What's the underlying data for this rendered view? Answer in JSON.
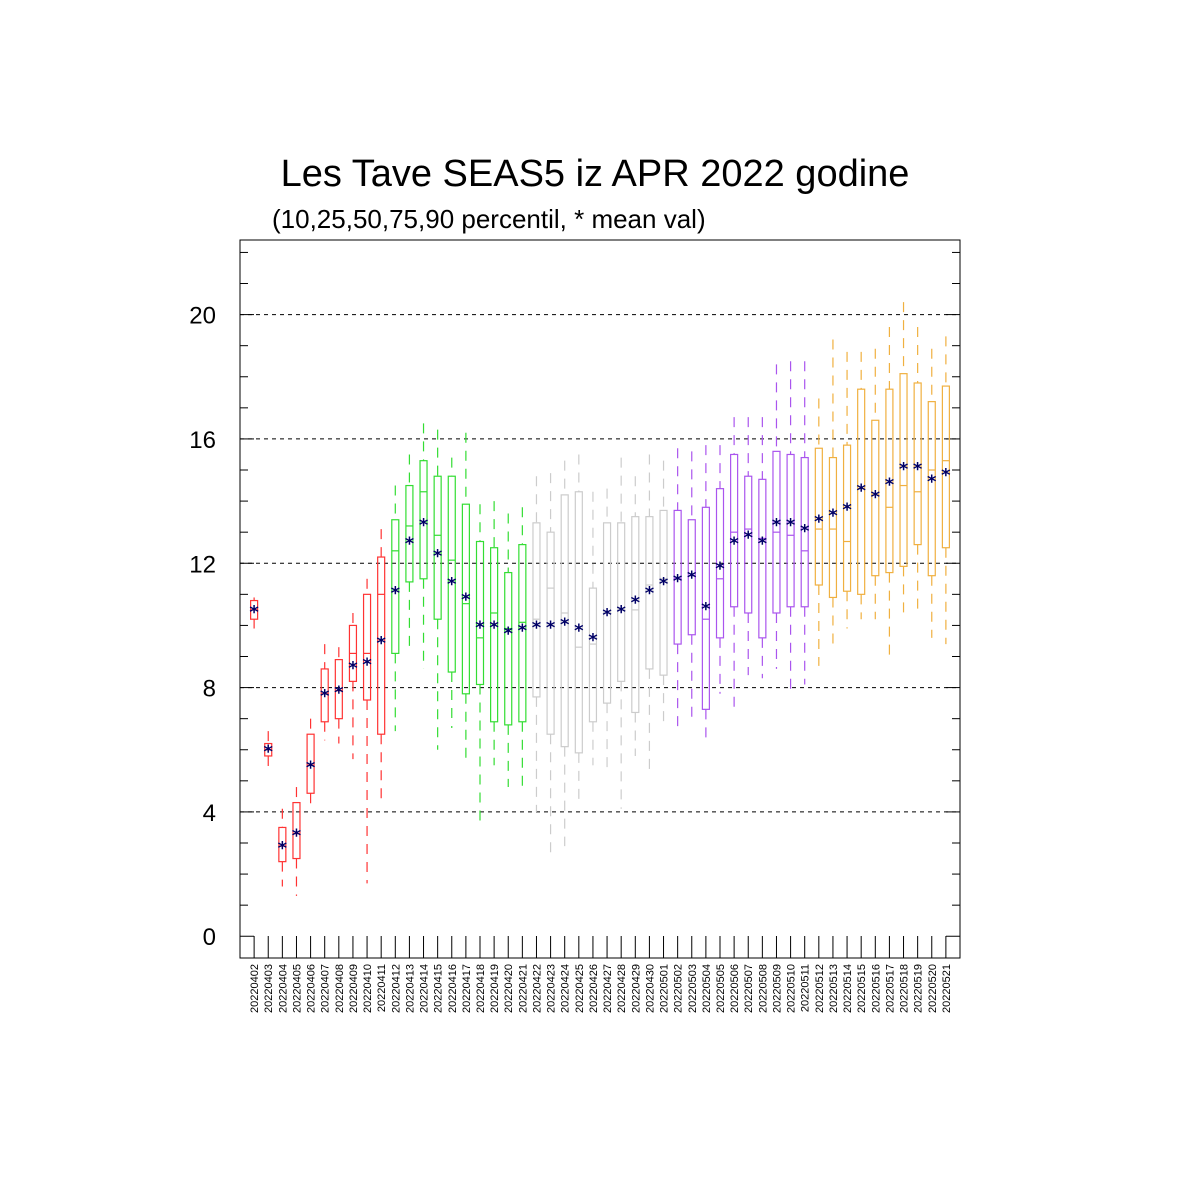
{
  "chart_data": {
    "type": "boxplot",
    "title": "Les Tave SEAS5 iz APR 2022 godine",
    "subtitle": "(10,25,50,75,90 percentil, * mean val)",
    "xlabel": "",
    "ylabel": "",
    "ylim": [
      -0.7,
      22.4
    ],
    "yticks": [
      0,
      4,
      8,
      12,
      16,
      20
    ],
    "grid_y": [
      4,
      8,
      12,
      16,
      20
    ],
    "mean_color": "#000066",
    "boxes": [
      {
        "date": "20220402",
        "p10": 9.9,
        "p25": 10.2,
        "p50": 10.5,
        "p75": 10.8,
        "p90": 10.9,
        "mean": 10.5,
        "color": "#ff3333"
      },
      {
        "date": "20220403",
        "p10": 5.3,
        "p25": 5.8,
        "p50": 6.0,
        "p75": 6.2,
        "p90": 6.6,
        "mean": 6.0,
        "color": "#ff3333"
      },
      {
        "date": "20220404",
        "p10": 1.6,
        "p25": 2.4,
        "p50": 2.9,
        "p75": 3.5,
        "p90": 4.1,
        "mean": 2.9,
        "color": "#ff3333"
      },
      {
        "date": "20220405",
        "p10": 1.3,
        "p25": 2.5,
        "p50": 3.3,
        "p75": 4.3,
        "p90": 4.8,
        "mean": 3.3,
        "color": "#ff3333"
      },
      {
        "date": "20220406",
        "p10": 4.1,
        "p25": 4.6,
        "p50": 5.5,
        "p75": 6.5,
        "p90": 7.0,
        "mean": 5.5,
        "color": "#ff3333"
      },
      {
        "date": "20220407",
        "p10": 6.3,
        "p25": 6.9,
        "p50": 7.8,
        "p75": 8.6,
        "p90": 9.4,
        "mean": 7.8,
        "color": "#ff3333"
      },
      {
        "date": "20220408",
        "p10": 6.2,
        "p25": 7.0,
        "p50": 7.9,
        "p75": 8.9,
        "p90": 9.3,
        "mean": 7.9,
        "color": "#ff3333"
      },
      {
        "date": "20220409",
        "p10": 5.7,
        "p25": 8.2,
        "p50": 9.1,
        "p75": 10.0,
        "p90": 10.4,
        "mean": 8.7,
        "color": "#ff3333"
      },
      {
        "date": "20220410",
        "p10": 1.7,
        "p25": 7.6,
        "p50": 9.1,
        "p75": 11.0,
        "p90": 11.5,
        "mean": 8.8,
        "color": "#ff3333"
      },
      {
        "date": "20220411",
        "p10": 4.3,
        "p25": 6.5,
        "p50": 11.0,
        "p75": 12.2,
        "p90": 13.1,
        "mean": 9.5,
        "color": "#ff3333"
      },
      {
        "date": "20220412",
        "p10": 6.6,
        "p25": 9.1,
        "p50": 12.4,
        "p75": 13.4,
        "p90": 14.5,
        "mean": 11.1,
        "color": "#33dd33"
      },
      {
        "date": "20220413",
        "p10": 9.1,
        "p25": 11.4,
        "p50": 13.2,
        "p75": 14.5,
        "p90": 15.5,
        "mean": 12.7,
        "color": "#33dd33"
      },
      {
        "date": "20220414",
        "p10": 8.6,
        "p25": 11.5,
        "p50": 14.3,
        "p75": 15.3,
        "p90": 16.5,
        "mean": 13.3,
        "color": "#33dd33"
      },
      {
        "date": "20220415",
        "p10": 6.0,
        "p25": 10.2,
        "p50": 12.9,
        "p75": 14.8,
        "p90": 16.3,
        "mean": 12.3,
        "color": "#33dd33"
      },
      {
        "date": "20220416",
        "p10": 6.7,
        "p25": 8.5,
        "p50": 12.1,
        "p75": 14.8,
        "p90": 15.4,
        "mean": 11.4,
        "color": "#33dd33"
      },
      {
        "date": "20220417",
        "p10": 5.5,
        "p25": 7.8,
        "p50": 10.7,
        "p75": 13.9,
        "p90": 16.2,
        "mean": 10.9,
        "color": "#33dd33"
      },
      {
        "date": "20220418",
        "p10": 3.7,
        "p25": 8.1,
        "p50": 9.6,
        "p75": 12.7,
        "p90": 13.9,
        "mean": 10.0,
        "color": "#33dd33"
      },
      {
        "date": "20220419",
        "p10": 5.5,
        "p25": 6.9,
        "p50": 10.4,
        "p75": 12.5,
        "p90": 14.0,
        "mean": 10.0,
        "color": "#33dd33"
      },
      {
        "date": "20220420",
        "p10": 4.8,
        "p25": 6.8,
        "p50": 9.9,
        "p75": 11.7,
        "p90": 13.6,
        "mean": 9.8,
        "color": "#33dd33"
      },
      {
        "date": "20220421",
        "p10": 4.7,
        "p25": 6.9,
        "p50": 10.1,
        "p75": 12.6,
        "p90": 13.8,
        "mean": 9.9,
        "color": "#33dd33"
      },
      {
        "date": "20220422",
        "p10": 4.0,
        "p25": 7.7,
        "p50": 10.2,
        "p75": 13.3,
        "p90": 14.8,
        "mean": 10.0,
        "color": "#cccccc"
      },
      {
        "date": "20220423",
        "p10": 2.7,
        "p25": 6.5,
        "p50": 11.2,
        "p75": 13.0,
        "p90": 14.9,
        "mean": 10.0,
        "color": "#cccccc"
      },
      {
        "date": "20220424",
        "p10": 2.9,
        "p25": 6.1,
        "p50": 10.4,
        "p75": 14.2,
        "p90": 15.3,
        "mean": 10.1,
        "color": "#cccccc"
      },
      {
        "date": "20220425",
        "p10": 4.2,
        "p25": 5.9,
        "p50": 9.3,
        "p75": 14.3,
        "p90": 15.5,
        "mean": 9.9,
        "color": "#cccccc"
      },
      {
        "date": "20220426",
        "p10": 5.5,
        "p25": 6.9,
        "p50": 9.4,
        "p75": 11.2,
        "p90": 14.3,
        "mean": 9.6,
        "color": "#cccccc"
      },
      {
        "date": "20220427",
        "p10": 5.3,
        "p25": 7.5,
        "p50": 10.4,
        "p75": 13.3,
        "p90": 14.4,
        "mean": 10.4,
        "color": "#cccccc"
      },
      {
        "date": "20220428",
        "p10": 4.1,
        "p25": 8.2,
        "p50": 10.5,
        "p75": 13.3,
        "p90": 15.4,
        "mean": 10.5,
        "color": "#cccccc"
      },
      {
        "date": "20220429",
        "p10": 5.8,
        "p25": 7.2,
        "p50": 10.5,
        "p75": 13.5,
        "p90": 14.8,
        "mean": 10.8,
        "color": "#cccccc"
      },
      {
        "date": "20220430",
        "p10": 5.3,
        "p25": 8.6,
        "p50": 11.3,
        "p75": 13.5,
        "p90": 15.5,
        "mean": 11.1,
        "color": "#cccccc"
      },
      {
        "date": "20220501",
        "p10": 6.9,
        "p25": 8.4,
        "p50": 11.5,
        "p75": 13.7,
        "p90": 15.3,
        "mean": 11.4,
        "color": "#cccccc"
      },
      {
        "date": "20220502",
        "p10": 6.6,
        "p25": 9.4,
        "p50": 11.5,
        "p75": 13.7,
        "p90": 15.7,
        "mean": 11.5,
        "color": "#aa55ee"
      },
      {
        "date": "20220503",
        "p10": 7.0,
        "p25": 9.7,
        "p50": 11.6,
        "p75": 13.4,
        "p90": 15.6,
        "mean": 11.6,
        "color": "#aa55ee"
      },
      {
        "date": "20220504",
        "p10": 6.2,
        "p25": 7.3,
        "p50": 10.2,
        "p75": 13.8,
        "p90": 15.8,
        "mean": 10.6,
        "color": "#aa55ee"
      },
      {
        "date": "20220505",
        "p10": 7.8,
        "p25": 9.6,
        "p50": 11.5,
        "p75": 14.4,
        "p90": 15.8,
        "mean": 11.9,
        "color": "#aa55ee"
      },
      {
        "date": "20220506",
        "p10": 7.2,
        "p25": 10.6,
        "p50": 13.0,
        "p75": 15.5,
        "p90": 16.7,
        "mean": 12.7,
        "color": "#aa55ee"
      },
      {
        "date": "20220507",
        "p10": 8.4,
        "p25": 10.4,
        "p50": 13.1,
        "p75": 14.8,
        "p90": 16.7,
        "mean": 12.9,
        "color": "#aa55ee"
      },
      {
        "date": "20220508",
        "p10": 8.3,
        "p25": 9.6,
        "p50": 12.8,
        "p75": 14.7,
        "p90": 16.7,
        "mean": 12.7,
        "color": "#aa55ee"
      },
      {
        "date": "20220509",
        "p10": 8.6,
        "p25": 10.4,
        "p50": 13.0,
        "p75": 15.6,
        "p90": 18.4,
        "mean": 13.3,
        "color": "#aa55ee"
      },
      {
        "date": "20220510",
        "p10": 7.8,
        "p25": 10.6,
        "p50": 12.9,
        "p75": 15.5,
        "p90": 18.5,
        "mean": 13.3,
        "color": "#aa55ee"
      },
      {
        "date": "20220511",
        "p10": 8.1,
        "p25": 10.6,
        "p50": 12.4,
        "p75": 15.4,
        "p90": 18.5,
        "mean": 13.1,
        "color": "#aa55ee"
      },
      {
        "date": "20220512",
        "p10": 8.7,
        "p25": 11.3,
        "p50": 13.1,
        "p75": 15.7,
        "p90": 17.3,
        "mean": 13.4,
        "color": "#f0b040"
      },
      {
        "date": "20220513",
        "p10": 9.4,
        "p25": 10.9,
        "p50": 13.1,
        "p75": 15.4,
        "p90": 19.2,
        "mean": 13.6,
        "color": "#f0b040"
      },
      {
        "date": "20220514",
        "p10": 9.9,
        "p25": 11.1,
        "p50": 12.7,
        "p75": 15.8,
        "p90": 18.8,
        "mean": 13.8,
        "color": "#f0b040"
      },
      {
        "date": "20220515",
        "p10": 10.2,
        "p25": 11.0,
        "p50": 14.4,
        "p75": 17.6,
        "p90": 18.8,
        "mean": 14.4,
        "color": "#f0b040"
      },
      {
        "date": "20220516",
        "p10": 10.2,
        "p25": 11.6,
        "p50": 14.2,
        "p75": 16.6,
        "p90": 18.9,
        "mean": 14.2,
        "color": "#f0b040"
      },
      {
        "date": "20220517",
        "p10": 8.9,
        "p25": 11.7,
        "p50": 13.8,
        "p75": 17.6,
        "p90": 19.6,
        "mean": 14.6,
        "color": "#f0b040"
      },
      {
        "date": "20220518",
        "p10": 10.4,
        "p25": 11.9,
        "p50": 14.5,
        "p75": 18.1,
        "p90": 20.4,
        "mean": 15.1,
        "color": "#f0b040"
      },
      {
        "date": "20220519",
        "p10": 10.4,
        "p25": 12.6,
        "p50": 14.3,
        "p75": 17.8,
        "p90": 19.6,
        "mean": 15.1,
        "color": "#f0b040"
      },
      {
        "date": "20220520",
        "p10": 9.6,
        "p25": 11.6,
        "p50": 15.0,
        "p75": 17.2,
        "p90": 18.9,
        "mean": 14.7,
        "color": "#f0b040"
      },
      {
        "date": "20220521",
        "p10": 9.4,
        "p25": 12.5,
        "p50": 15.3,
        "p75": 17.7,
        "p90": 19.3,
        "mean": 14.9,
        "color": "#f0b040"
      }
    ]
  }
}
